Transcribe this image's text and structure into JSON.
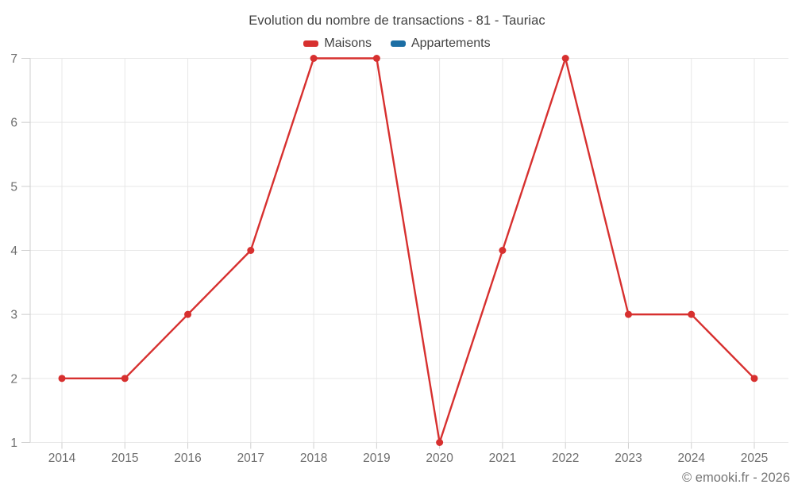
{
  "title": "Evolution du nombre de transactions - 81 - Tauriac",
  "footer": "© emooki.fr - 2026",
  "colors": {
    "maisons": "#d7302f",
    "appartements": "#1c6ea4",
    "grid": "#e7e7e7",
    "axis": "#cfcfcf",
    "axis_label": "#6e6e6e",
    "title_text": "#424242",
    "footer_text": "#757575",
    "background": "#ffffff"
  },
  "chart_data": {
    "type": "line",
    "title": "Evolution du nombre de transactions - 81 - Tauriac",
    "x": [
      "2014",
      "2015",
      "2016",
      "2017",
      "2018",
      "2019",
      "2020",
      "2021",
      "2022",
      "2023",
      "2024",
      "2025"
    ],
    "series": [
      {
        "name": "Maisons",
        "color": "#d7302f",
        "values": [
          2,
          2,
          3,
          4,
          7,
          7,
          1,
          4,
          7,
          3,
          3,
          2
        ]
      },
      {
        "name": "Appartements",
        "color": "#1c6ea4",
        "values": []
      }
    ],
    "xlabel": "",
    "ylabel": "",
    "ylim": [
      1,
      7
    ],
    "yticks": [
      1,
      2,
      3,
      4,
      5,
      6,
      7
    ],
    "grid": true,
    "legend_position": "top",
    "marker_radius": 4.5,
    "line_width": 2.4
  }
}
